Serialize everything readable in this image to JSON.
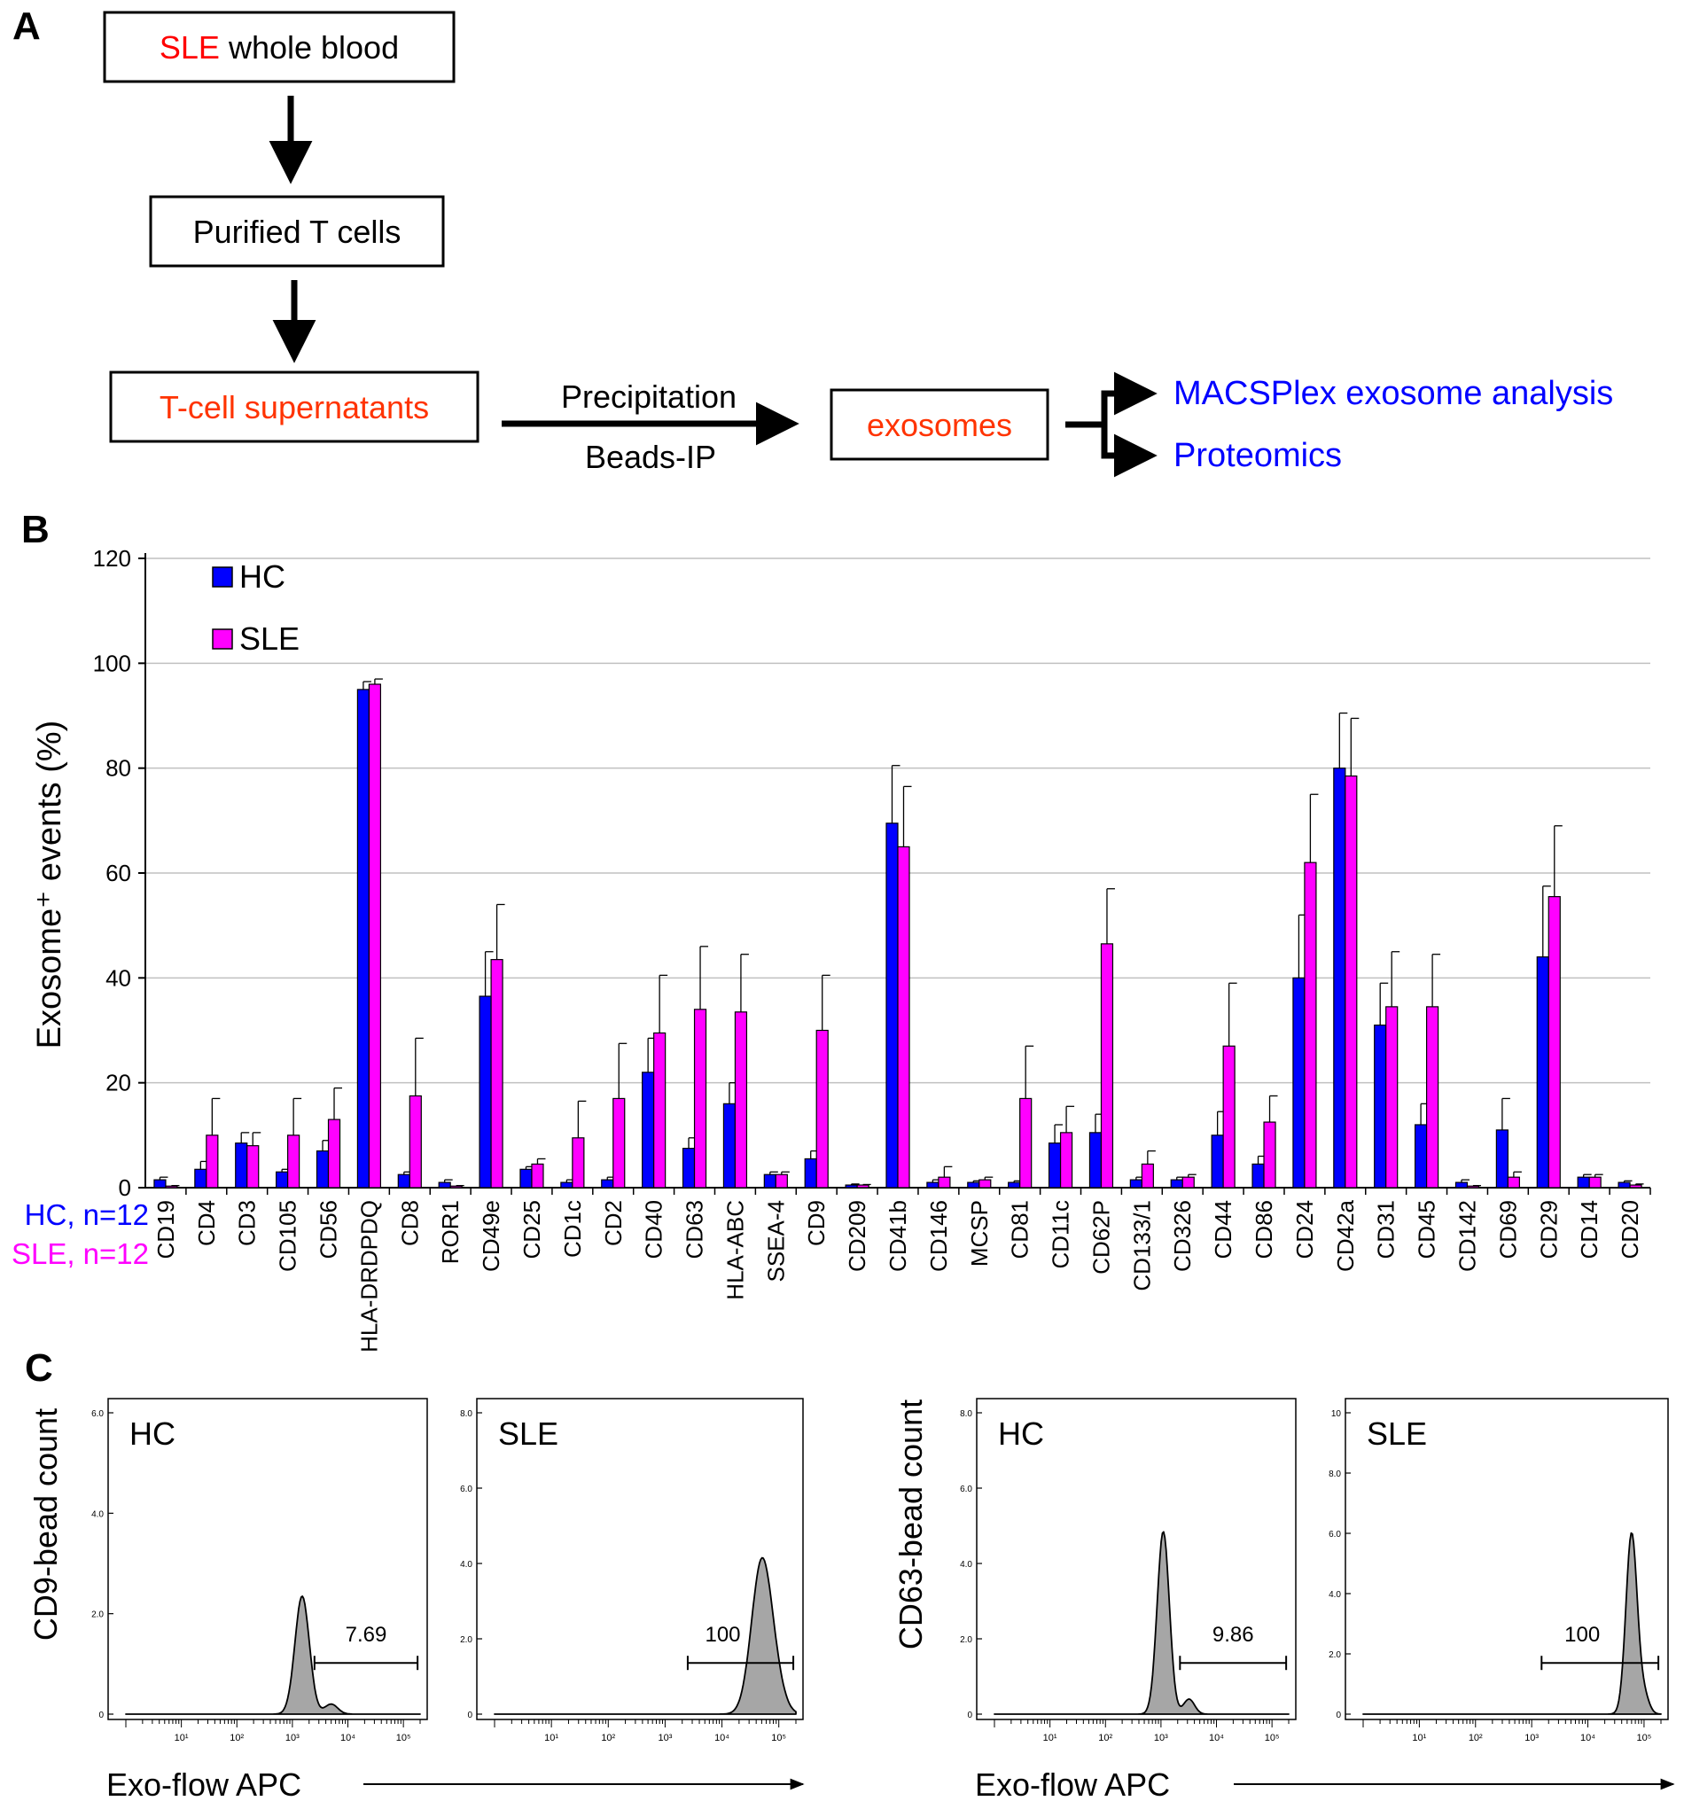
{
  "colors": {
    "hc": "#0000ff",
    "sle": "#ff00ff",
    "red_text": "#ff0000",
    "orange_text": "#ff3300",
    "blue_text": "#0000ff",
    "histogram_fill": "#a6a6a6",
    "grid": "#c0c0c0"
  },
  "panel_a": {
    "label": "A",
    "box1": {
      "highlight": "SLE",
      "rest": " whole blood"
    },
    "box2": "Purified T cells",
    "box3": "T-cell supernatants",
    "arrow_top_label": "Precipitation",
    "arrow_bottom_label": "Beads-IP",
    "box4": "exosomes",
    "out1": "MACSPlex exosome analysis",
    "out2": "Proteomics"
  },
  "panel_b": {
    "label": "B",
    "hc_n": "HC, n=12",
    "sle_n": "SLE, n=12"
  },
  "chart_data": [
    {
      "type": "bar",
      "ylabel": "Exosome⁺ events (%)",
      "ylim": [
        0,
        120
      ],
      "yticks": [
        0,
        20,
        40,
        60,
        80,
        100,
        120
      ],
      "grid": true,
      "legend_placement": "top-left",
      "categories": [
        "CD19",
        "CD4",
        "CD3",
        "CD105",
        "CD56",
        "HLA-DRDPDQ",
        "CD8",
        "ROR1",
        "CD49e",
        "CD25",
        "CD1c",
        "CD2",
        "CD40",
        "CD63",
        "HLA-ABC",
        "SSEA-4",
        "CD9",
        "CD209",
        "CD41b",
        "CD146",
        "MCSP",
        "CD81",
        "CD11c",
        "CD62P",
        "CD133/1",
        "CD326",
        "CD44",
        "CD86",
        "CD24",
        "CD42a",
        "CD31",
        "CD45",
        "CD142",
        "CD69",
        "CD29",
        "CD14",
        "CD20"
      ],
      "series": [
        {
          "name": "HC",
          "values": [
            1.5,
            3.5,
            8.5,
            3.0,
            7.0,
            95.0,
            2.5,
            1.0,
            36.5,
            3.5,
            1.0,
            1.5,
            22.0,
            7.5,
            16.0,
            2.5,
            5.5,
            0.5,
            69.5,
            1.0,
            1.0,
            1.0,
            8.5,
            10.5,
            1.5,
            1.5,
            10.0,
            4.5,
            40.0,
            80.0,
            31.0,
            12.0,
            1.0,
            11.0,
            44.0,
            2.0,
            1.0
          ],
          "errors": [
            0.5,
            1.5,
            2.0,
            0.5,
            2.0,
            1.5,
            0.5,
            0.5,
            8.5,
            0.5,
            0.5,
            0.5,
            6.5,
            2.0,
            4.0,
            0.5,
            1.5,
            0.2,
            11.0,
            0.5,
            0.3,
            0.3,
            3.5,
            3.5,
            0.5,
            0.5,
            4.5,
            1.5,
            12.0,
            10.5,
            8.0,
            4.0,
            0.5,
            6.0,
            13.5,
            0.5,
            0.3
          ]
        },
        {
          "name": "SLE",
          "values": [
            0.3,
            10.0,
            8.0,
            10.0,
            13.0,
            96.0,
            17.5,
            0.3,
            43.5,
            4.5,
            9.5,
            17.0,
            29.5,
            34.0,
            33.5,
            2.5,
            30.0,
            0.5,
            65.0,
            2.0,
            1.5,
            17.0,
            10.5,
            46.5,
            4.5,
            2.0,
            27.0,
            12.5,
            62.0,
            78.5,
            34.5,
            34.5,
            0.3,
            2.0,
            55.5,
            2.0,
            0.5
          ],
          "errors": [
            0.1,
            7.0,
            2.5,
            7.0,
            6.0,
            1.0,
            11.0,
            0.1,
            10.5,
            1.0,
            7.0,
            10.5,
            11.0,
            12.0,
            11.0,
            0.5,
            10.5,
            0.1,
            11.5,
            2.0,
            0.5,
            10.0,
            5.0,
            10.5,
            2.5,
            0.5,
            12.0,
            5.0,
            13.0,
            11.0,
            10.5,
            10.0,
            0.1,
            1.0,
            13.5,
            0.5,
            0.2
          ]
        }
      ]
    },
    {
      "type": "area",
      "title": "HC",
      "ylabel": "CD9-bead count",
      "xlabel": "Exo-flow APC",
      "x_scale": "log",
      "xlim": [
        1,
        200000
      ],
      "xticks": [
        "10¹",
        "10²",
        "10³",
        "10⁴",
        "10⁵"
      ],
      "ylim": [
        0,
        6.0
      ],
      "yticks": [
        "0",
        "2.0",
        "4.0",
        "6.0"
      ],
      "peak_x": 1500,
      "peak_height": 2.35,
      "peak_width_decades": 0.13,
      "shoulder_x": 5000,
      "shoulder_height": 0.2,
      "gate": [
        2500,
        180000
      ],
      "gate_label": "7.69"
    },
    {
      "type": "area",
      "title": "SLE",
      "x_scale": "log",
      "xlim": [
        1,
        200000
      ],
      "xticks": [
        "10¹",
        "10²",
        "10³",
        "10⁴",
        "10⁵"
      ],
      "ylim": [
        0,
        8.0
      ],
      "yticks": [
        "0",
        "2.0",
        "4.0",
        "6.0",
        "8.0"
      ],
      "peak_x": 50000,
      "peak_height": 4.0,
      "peak_width_decades": 0.18,
      "shoulder_x": 90000,
      "shoulder_height": 0.5,
      "gate": [
        2500,
        180000
      ],
      "gate_label": "100"
    },
    {
      "type": "area",
      "title": "HC",
      "ylabel": "CD63-bead count",
      "xlabel": "Exo-flow APC",
      "x_scale": "log",
      "xlim": [
        1,
        200000
      ],
      "xticks": [
        "10¹",
        "10²",
        "10³",
        "10⁴",
        "10⁵"
      ],
      "ylim": [
        0,
        8.0
      ],
      "yticks": [
        "0",
        "2.0",
        "4.0",
        "6.0",
        "8.0"
      ],
      "peak_x": 1100,
      "peak_height": 4.85,
      "peak_width_decades": 0.11,
      "shoulder_x": 3200,
      "shoulder_height": 0.4,
      "gate": [
        2200,
        180000
      ],
      "gate_label": "9.86"
    },
    {
      "type": "area",
      "title": "SLE",
      "x_scale": "log",
      "xlim": [
        1,
        200000
      ],
      "xticks": [
        "10¹",
        "10²",
        "10³",
        "10⁴",
        "10⁵"
      ],
      "ylim": [
        0,
        10
      ],
      "yticks": [
        "0",
        "2.0",
        "4.0",
        "6.0",
        "8.0",
        "10"
      ],
      "peak_x": 60000,
      "peak_height": 6.0,
      "peak_width_decades": 0.1,
      "shoulder_x": 100000,
      "shoulder_height": 0.6,
      "gate": [
        1500,
        180000
      ],
      "gate_label": "100"
    }
  ],
  "panel_c": {
    "label": "C"
  }
}
